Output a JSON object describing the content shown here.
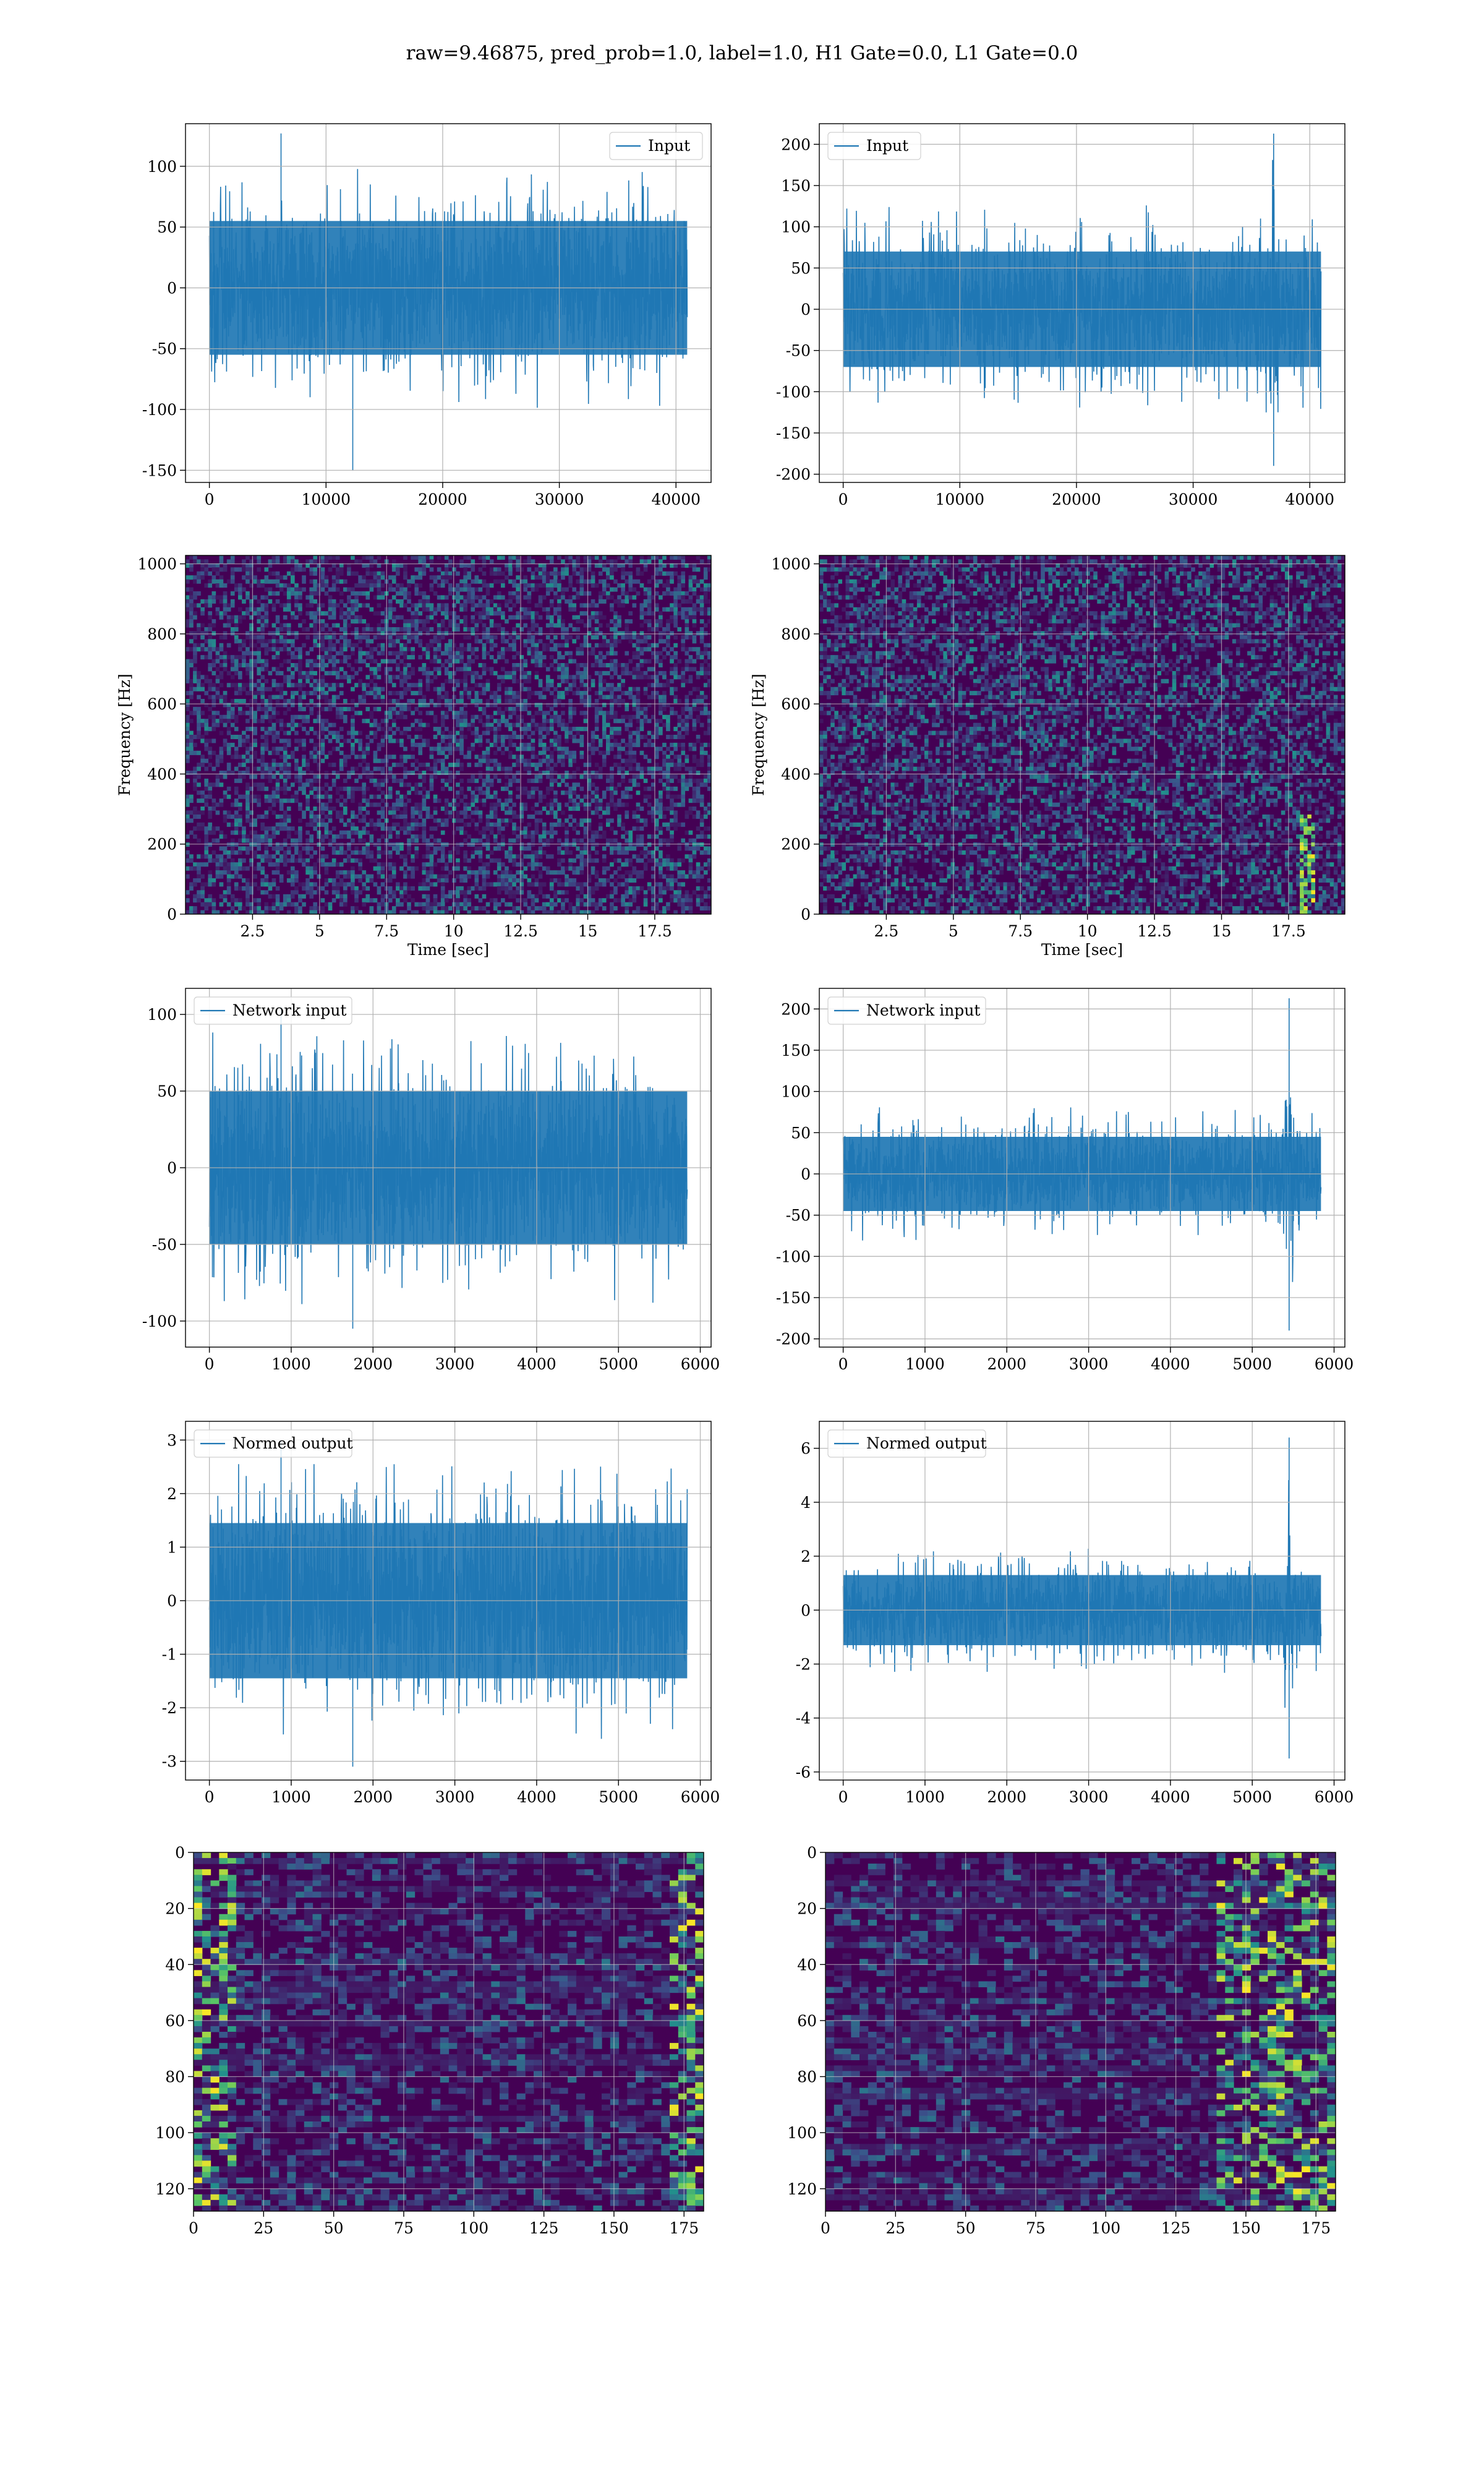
{
  "suptitle": "raw=9.46875, pred_prob=1.0, label=1.0, H1 Gate=0.0, L1 Gate=0.0",
  "colors": {
    "line": "#1f77b4",
    "grid": "#b0b0b0",
    "viridis_low": "#440154",
    "viridis_mid": "#21918c",
    "viridis_high": "#fde725"
  },
  "chart_data": [
    {
      "id": "h1-input",
      "type": "line",
      "legend": "Input",
      "legend_loc": "upper right",
      "x_range": [
        0,
        40960
      ],
      "ylim": [
        -160,
        135
      ],
      "xticks": [
        0,
        10000,
        20000,
        30000,
        40000
      ],
      "yticks": [
        -150,
        -100,
        -50,
        0,
        50,
        100
      ],
      "xlabel": "",
      "ylabel": "",
      "envelope": {
        "core": 55,
        "spike_max": 127,
        "spike_min": -150
      }
    },
    {
      "id": "l1-input",
      "type": "line",
      "legend": "Input",
      "legend_loc": "upper left",
      "x_range": [
        0,
        40960
      ],
      "ylim": [
        -210,
        225
      ],
      "xticks": [
        0,
        10000,
        20000,
        30000,
        40000
      ],
      "yticks": [
        -200,
        -150,
        -100,
        -50,
        0,
        50,
        100,
        150,
        200
      ],
      "xlabel": "",
      "ylabel": "",
      "envelope": {
        "core": 70,
        "spike_max": 213,
        "spike_min": -190,
        "glitch_x": 36900
      }
    },
    {
      "id": "h1-spectrogram",
      "type": "heatmap",
      "colormap": "viridis",
      "x_range": [
        0,
        19.6
      ],
      "ylim": [
        0,
        1024
      ],
      "xticks": [
        2.5,
        5.0,
        7.5,
        10.0,
        12.5,
        15.0,
        17.5
      ],
      "yticks": [
        0,
        200,
        400,
        600,
        800,
        1000
      ],
      "xlabel": "Time [sec]",
      "ylabel": "Frequency [Hz]"
    },
    {
      "id": "l1-spectrogram",
      "type": "heatmap",
      "colormap": "viridis",
      "x_range": [
        0,
        19.6
      ],
      "ylim": [
        0,
        1024
      ],
      "xticks": [
        2.5,
        5.0,
        7.5,
        10.0,
        12.5,
        15.0,
        17.5
      ],
      "yticks": [
        0,
        200,
        400,
        600,
        800,
        1000
      ],
      "xlabel": "Time [sec]",
      "ylabel": "Frequency [Hz]",
      "glitch_time": 18.2
    },
    {
      "id": "h1-network-input",
      "type": "line",
      "legend": "Network input",
      "legend_loc": "upper left",
      "x_range": [
        0,
        5840
      ],
      "ylim": [
        -117,
        117
      ],
      "xticks": [
        0,
        1000,
        2000,
        3000,
        4000,
        5000,
        6000
      ],
      "yticks": [
        -100,
        -50,
        0,
        50,
        100
      ],
      "xlabel": "",
      "ylabel": "",
      "envelope": {
        "core": 50,
        "spike_max": 105,
        "spike_min": -105
      }
    },
    {
      "id": "l1-network-input",
      "type": "line",
      "legend": "Network input",
      "legend_loc": "upper left",
      "x_range": [
        0,
        5840
      ],
      "ylim": [
        -210,
        225
      ],
      "xticks": [
        0,
        1000,
        2000,
        3000,
        4000,
        5000,
        6000
      ],
      "yticks": [
        -200,
        -150,
        -100,
        -50,
        0,
        50,
        100,
        150,
        200
      ],
      "xlabel": "",
      "ylabel": "",
      "envelope": {
        "core": 45,
        "spike_max": 213,
        "spike_min": -190,
        "glitch_x": 5450
      }
    },
    {
      "id": "h1-normed-output",
      "type": "line",
      "legend": "Normed output",
      "legend_loc": "upper left",
      "x_range": [
        0,
        5840
      ],
      "ylim": [
        -3.35,
        3.35
      ],
      "xticks": [
        0,
        1000,
        2000,
        3000,
        4000,
        5000,
        6000
      ],
      "yticks": [
        -3,
        -2,
        -1,
        0,
        1,
        2,
        3
      ],
      "xlabel": "",
      "ylabel": "",
      "envelope": {
        "core": 1.45,
        "spike_max": 3.0,
        "spike_min": -3.1
      }
    },
    {
      "id": "l1-normed-output",
      "type": "line",
      "legend": "Normed output",
      "legend_loc": "upper left",
      "x_range": [
        0,
        5840
      ],
      "ylim": [
        -6.3,
        7.0
      ],
      "xticks": [
        0,
        1000,
        2000,
        3000,
        4000,
        5000,
        6000
      ],
      "yticks": [
        -6,
        -4,
        -2,
        0,
        2,
        4,
        6
      ],
      "xlabel": "",
      "ylabel": "",
      "envelope": {
        "core": 1.3,
        "spike_max": 6.4,
        "spike_min": -5.5,
        "glitch_x": 5450
      }
    },
    {
      "id": "h1-feature-map",
      "type": "heatmap",
      "colormap": "viridis",
      "x_range": [
        0,
        182
      ],
      "ylim": [
        128,
        0
      ],
      "xticks": [
        0,
        25,
        50,
        75,
        100,
        125,
        150,
        175
      ],
      "yticks": [
        0,
        20,
        40,
        60,
        80,
        100,
        120
      ],
      "xlabel": "",
      "ylabel": ""
    },
    {
      "id": "l1-feature-map",
      "type": "heatmap",
      "colormap": "viridis",
      "x_range": [
        0,
        182
      ],
      "ylim": [
        128,
        0
      ],
      "xticks": [
        0,
        25,
        50,
        75,
        100,
        125,
        150,
        175
      ],
      "yticks": [
        0,
        20,
        40,
        60,
        80,
        100,
        120
      ],
      "xlabel": "",
      "ylabel": ""
    }
  ]
}
